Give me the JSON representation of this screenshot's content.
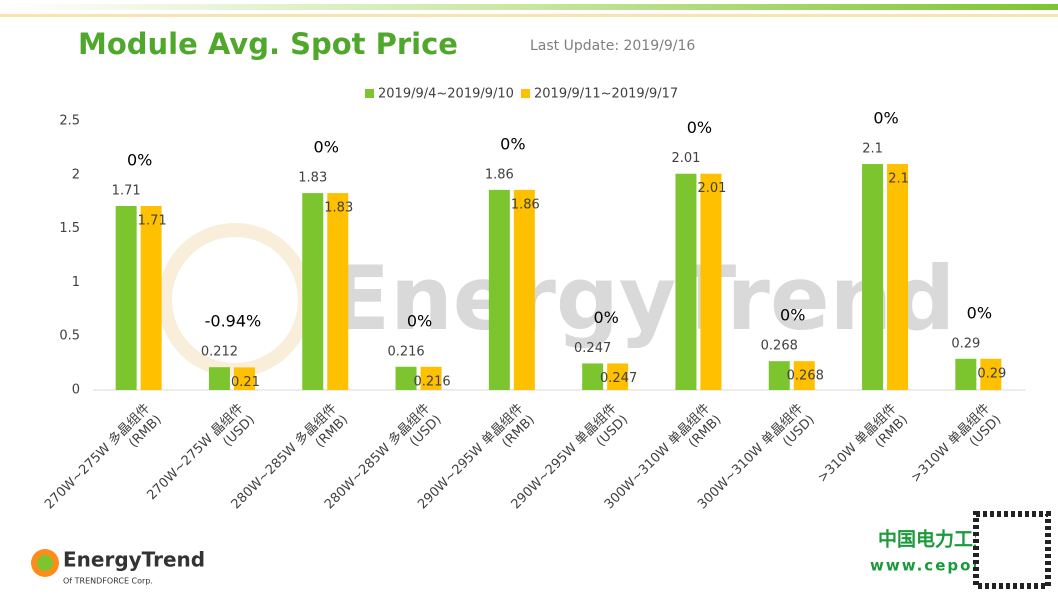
{
  "chart_data": {
    "type": "bar",
    "title": "Module Avg. Spot Price",
    "subtitle": "Last Update: 2019/9/16",
    "categories": [
      "270W~275W 多晶组件 (RMB)",
      "270W~275W 晶组件 (USD)",
      "280W~285W 多晶组件 (RMB)",
      "280W~285W 多晶组件 (USD)",
      "290W~295W 单晶组件 (RMB)",
      "290W~295W 单晶组件 (USD)",
      "300W~310W 单晶组件 (RMB)",
      "300W~310W 单晶组件 (USD)",
      ">310W 单晶组件 (RMB)",
      ">310W 单晶组件 (USD)"
    ],
    "series": [
      {
        "name": "2019/9/4~2019/9/10",
        "color": "#7dc52e",
        "values": [
          1.71,
          0.212,
          1.83,
          0.216,
          1.86,
          0.247,
          2.01,
          0.268,
          2.1,
          0.29
        ]
      },
      {
        "name": "2019/9/11~2019/9/17",
        "color": "#ffc000",
        "values": [
          1.71,
          0.21,
          1.83,
          0.216,
          1.86,
          0.247,
          2.01,
          0.268,
          2.1,
          0.29
        ]
      }
    ],
    "change_labels": [
      "0%",
      "-0.94%",
      "0%",
      "0%",
      "0%",
      "0%",
      "0%",
      "0%",
      "0%",
      "0%"
    ],
    "ylim": [
      0,
      2.5
    ],
    "yticks": [
      0,
      0.5,
      1,
      1.5,
      2,
      2.5
    ],
    "grid": false
  },
  "branding": {
    "watermark": "EnergyTrend",
    "logo": "EnergyTrend",
    "logo_sub": "Of TRENDFORCE Corp.",
    "site": "中国电力工业网",
    "url": "www.cepow.com"
  }
}
